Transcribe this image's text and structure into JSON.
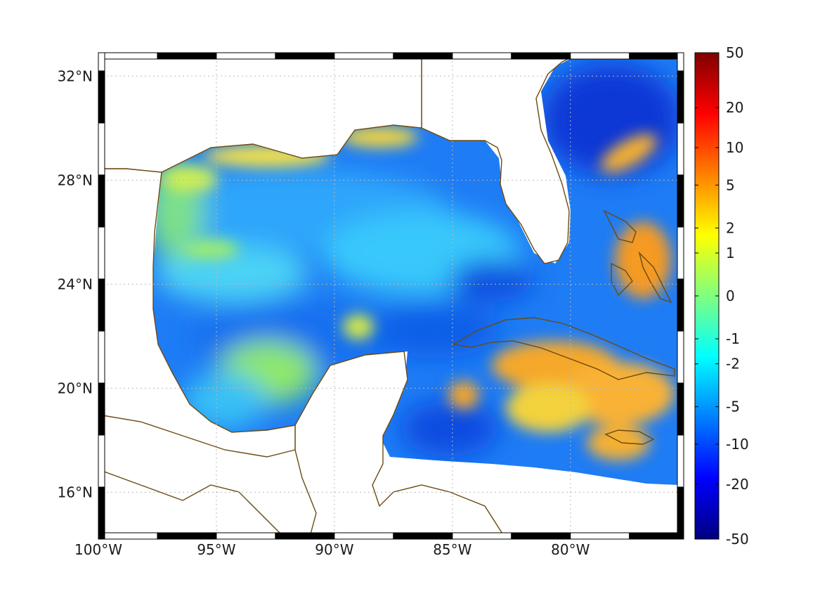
{
  "chart_data": {
    "type": "heatmap",
    "title": "",
    "map_extent": {
      "lon": [
        -100,
        -75.2
      ],
      "lat": [
        14.2,
        32.9
      ]
    },
    "lon_ticks": [
      {
        "value": -100,
        "label": "100°W"
      },
      {
        "value": -95,
        "label": "95°W"
      },
      {
        "value": -90,
        "label": "90°W"
      },
      {
        "value": -85,
        "label": "85°W"
      },
      {
        "value": -80,
        "label": "80°W"
      }
    ],
    "lat_ticks": [
      {
        "value": 16,
        "label": "16°N"
      },
      {
        "value": 20,
        "label": "20°N"
      },
      {
        "value": 24,
        "label": "24°N"
      },
      {
        "value": 28,
        "label": "28°N"
      },
      {
        "value": 32,
        "label": "32°N"
      }
    ],
    "colorbar": {
      "scale": "symmetric-log",
      "range": [
        -50,
        50
      ],
      "ticks": [
        {
          "value": 50,
          "label": "50"
        },
        {
          "value": 20,
          "label": "20"
        },
        {
          "value": 10,
          "label": "10"
        },
        {
          "value": 5,
          "label": "5"
        },
        {
          "value": 2,
          "label": "2"
        },
        {
          "value": 1,
          "label": "1"
        },
        {
          "value": 0,
          "label": "0"
        },
        {
          "value": -1,
          "label": "-1"
        },
        {
          "value": -2,
          "label": "-2"
        },
        {
          "value": -5,
          "label": "-5"
        },
        {
          "value": -10,
          "label": "-10"
        },
        {
          "value": -20,
          "label": "-20"
        },
        {
          "value": -50,
          "label": "-50"
        }
      ],
      "colormap": "jet"
    },
    "grid": true,
    "coastline_color": "#6b4a12",
    "field_regions": [
      {
        "region": "Gulf of Mexico interior",
        "value": -4
      },
      {
        "region": "Northern Gulf coast (Texas to Mississippi)",
        "value": 1.5
      },
      {
        "region": "Western Atlantic off Florida/Georgia",
        "value": -10
      },
      {
        "region": "Atlantic NE of Florida filament",
        "value": 3
      },
      {
        "region": "Bahamas",
        "value": 4
      },
      {
        "region": "Southern Cuba / Caribbean",
        "value": 3
      },
      {
        "region": "Yucatan Channel / W Caribbean",
        "value": -4
      },
      {
        "region": "Bay of Campeche",
        "value": 0.5
      }
    ]
  }
}
